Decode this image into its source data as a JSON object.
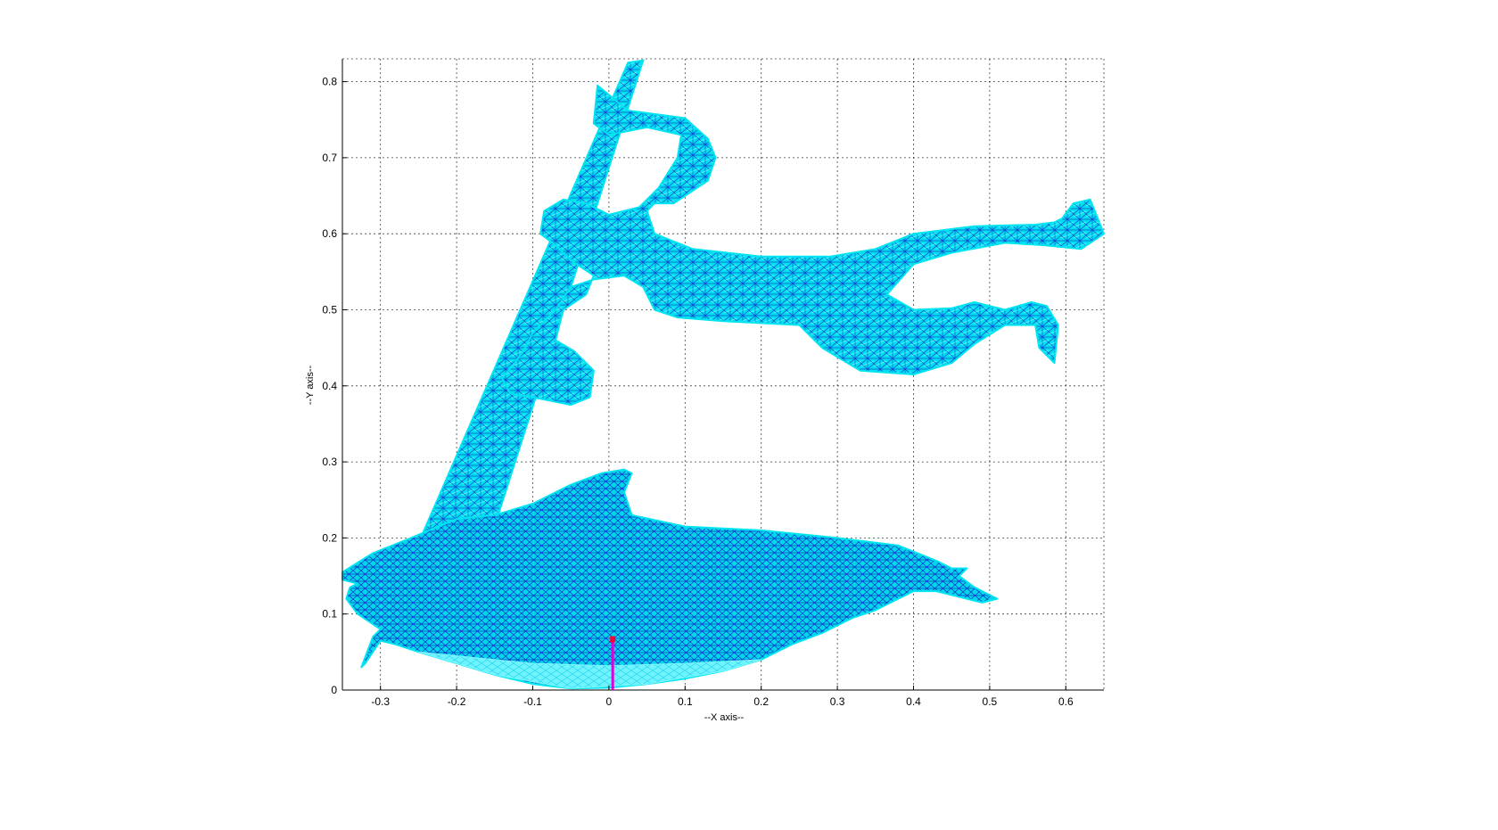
{
  "chart_data": {
    "type": "scatter",
    "title": "",
    "xlabel": "--X axis--",
    "ylabel": "--Y axis--",
    "xlim": [
      -0.35,
      0.65
    ],
    "ylim": [
      0,
      0.83
    ],
    "x_ticks": [
      -0.3,
      -0.2,
      -0.1,
      0,
      0.1,
      0.2,
      0.3,
      0.4,
      0.5,
      0.6
    ],
    "x_tick_labels": [
      "-0.3",
      "-0.2",
      "-0.1",
      "0",
      "0.1",
      "0.2",
      "0.3",
      "0.4",
      "0.5",
      "0.6"
    ],
    "y_ticks": [
      0,
      0.1,
      0.2,
      0.3,
      0.4,
      0.5,
      0.6,
      0.7,
      0.8
    ],
    "y_tick_labels": [
      "0",
      "0.1",
      "0.2",
      "0.3",
      "0.4",
      "0.5",
      "0.6",
      "0.7",
      "0.8"
    ],
    "grid": true,
    "mesh_colors": {
      "fill": "#00e5f0",
      "edge": "#1a2ad6",
      "highlight": "#7ff7ff"
    },
    "marker": {
      "x": 0.005,
      "y": 0.065,
      "color": "#ff0033"
    },
    "vertical_line": {
      "x": 0.005,
      "y_from": 0,
      "y_to": 0.065,
      "color": "#dd00dd"
    },
    "shapes": {
      "surfboard": [
        [
          -0.245,
          0.205
        ],
        [
          0.025,
          0.825
        ],
        [
          0.045,
          0.828
        ],
        [
          -0.155,
          0.2
        ],
        [
          -0.2,
          0.225
        ]
      ],
      "person": [
        [
          -0.015,
          0.795
        ],
        [
          0.025,
          0.762
        ],
        [
          0.1,
          0.752
        ],
        [
          0.13,
          0.725
        ],
        [
          0.14,
          0.7
        ],
        [
          0.13,
          0.67
        ],
        [
          0.085,
          0.64
        ],
        [
          0.06,
          0.64
        ],
        [
          0.05,
          0.63
        ],
        [
          0.06,
          0.6
        ],
        [
          0.11,
          0.58
        ],
        [
          0.2,
          0.57
        ],
        [
          0.29,
          0.57
        ],
        [
          0.35,
          0.58
        ],
        [
          0.4,
          0.6
        ],
        [
          0.48,
          0.61
        ],
        [
          0.56,
          0.612
        ],
        [
          0.585,
          0.615
        ],
        [
          0.595,
          0.62
        ],
        [
          0.61,
          0.64
        ],
        [
          0.632,
          0.645
        ],
        [
          0.65,
          0.6
        ],
        [
          0.62,
          0.58
        ],
        [
          0.57,
          0.585
        ],
        [
          0.52,
          0.588
        ],
        [
          0.45,
          0.575
        ],
        [
          0.4,
          0.56
        ],
        [
          0.365,
          0.52
        ],
        [
          0.4,
          0.5
        ],
        [
          0.45,
          0.502
        ],
        [
          0.48,
          0.51
        ],
        [
          0.52,
          0.5
        ],
        [
          0.555,
          0.51
        ],
        [
          0.575,
          0.505
        ],
        [
          0.59,
          0.48
        ],
        [
          0.585,
          0.43
        ],
        [
          0.565,
          0.45
        ],
        [
          0.56,
          0.48
        ],
        [
          0.52,
          0.48
        ],
        [
          0.48,
          0.455
        ],
        [
          0.45,
          0.43
        ],
        [
          0.4,
          0.415
        ],
        [
          0.33,
          0.42
        ],
        [
          0.28,
          0.45
        ],
        [
          0.25,
          0.48
        ],
        [
          0.15,
          0.485
        ],
        [
          0.09,
          0.49
        ],
        [
          0.06,
          0.5
        ],
        [
          0.045,
          0.53
        ],
        [
          0.02,
          0.545
        ],
        [
          -0.02,
          0.54
        ],
        [
          -0.05,
          0.53
        ],
        [
          -0.07,
          0.5
        ],
        [
          -0.1,
          0.47
        ],
        [
          -0.11,
          0.45
        ],
        [
          -0.12,
          0.435
        ],
        [
          -0.14,
          0.41
        ],
        [
          -0.13,
          0.39
        ],
        [
          -0.1,
          0.385
        ],
        [
          -0.05,
          0.375
        ],
        [
          -0.025,
          0.385
        ],
        [
          -0.02,
          0.42
        ],
        [
          -0.045,
          0.445
        ],
        [
          -0.07,
          0.46
        ],
        [
          -0.06,
          0.5
        ],
        [
          -0.03,
          0.52
        ],
        [
          -0.02,
          0.545
        ],
        [
          -0.05,
          0.565
        ],
        [
          -0.07,
          0.585
        ],
        [
          -0.09,
          0.6
        ],
        [
          -0.085,
          0.63
        ],
        [
          -0.06,
          0.645
        ],
        [
          -0.03,
          0.64
        ],
        [
          0.0,
          0.625
        ],
        [
          0.04,
          0.635
        ],
        [
          0.065,
          0.66
        ],
        [
          0.09,
          0.7
        ],
        [
          0.095,
          0.73
        ],
        [
          0.05,
          0.74
        ],
        [
          0.0,
          0.73
        ],
        [
          -0.02,
          0.745
        ]
      ],
      "dolphin": [
        [
          -0.35,
          0.155
        ],
        [
          -0.31,
          0.18
        ],
        [
          -0.26,
          0.2
        ],
        [
          -0.2,
          0.225
        ],
        [
          -0.15,
          0.23
        ],
        [
          -0.1,
          0.245
        ],
        [
          -0.05,
          0.27
        ],
        [
          -0.01,
          0.285
        ],
        [
          0.02,
          0.29
        ],
        [
          0.03,
          0.285
        ],
        [
          0.02,
          0.26
        ],
        [
          0.03,
          0.23
        ],
        [
          0.1,
          0.215
        ],
        [
          0.2,
          0.21
        ],
        [
          0.3,
          0.2
        ],
        [
          0.38,
          0.19
        ],
        [
          0.43,
          0.17
        ],
        [
          0.45,
          0.16
        ],
        [
          0.47,
          0.16
        ],
        [
          0.46,
          0.15
        ],
        [
          0.48,
          0.135
        ],
        [
          0.5,
          0.125
        ],
        [
          0.51,
          0.12
        ],
        [
          0.49,
          0.115
        ],
        [
          0.47,
          0.12
        ],
        [
          0.43,
          0.13
        ],
        [
          0.4,
          0.13
        ],
        [
          0.38,
          0.12
        ],
        [
          0.35,
          0.105
        ],
        [
          0.32,
          0.095
        ],
        [
          0.28,
          0.075
        ],
        [
          0.24,
          0.06
        ],
        [
          0.2,
          0.04
        ],
        [
          0.15,
          0.025
        ],
        [
          0.1,
          0.015
        ],
        [
          0.05,
          0.008
        ],
        [
          0.0,
          0.003
        ],
        [
          -0.05,
          0.002
        ],
        [
          -0.1,
          0.008
        ],
        [
          -0.15,
          0.02
        ],
        [
          -0.2,
          0.035
        ],
        [
          -0.25,
          0.05
        ],
        [
          -0.28,
          0.06
        ],
        [
          -0.3,
          0.065
        ],
        [
          -0.32,
          0.035
        ],
        [
          -0.325,
          0.03
        ],
        [
          -0.31,
          0.07
        ],
        [
          -0.3,
          0.08
        ],
        [
          -0.33,
          0.1
        ],
        [
          -0.345,
          0.12
        ],
        [
          -0.34,
          0.135
        ],
        [
          -0.33,
          0.14
        ],
        [
          -0.35,
          0.145
        ]
      ],
      "dolphin_belly": [
        [
          -0.25,
          0.05
        ],
        [
          -0.15,
          0.02
        ],
        [
          -0.05,
          0.002
        ],
        [
          0.05,
          0.008
        ],
        [
          0.15,
          0.025
        ],
        [
          0.2,
          0.04
        ],
        [
          0.1,
          0.035
        ],
        [
          0.0,
          0.032
        ],
        [
          -0.1,
          0.035
        ],
        [
          -0.2,
          0.045
        ]
      ]
    }
  }
}
